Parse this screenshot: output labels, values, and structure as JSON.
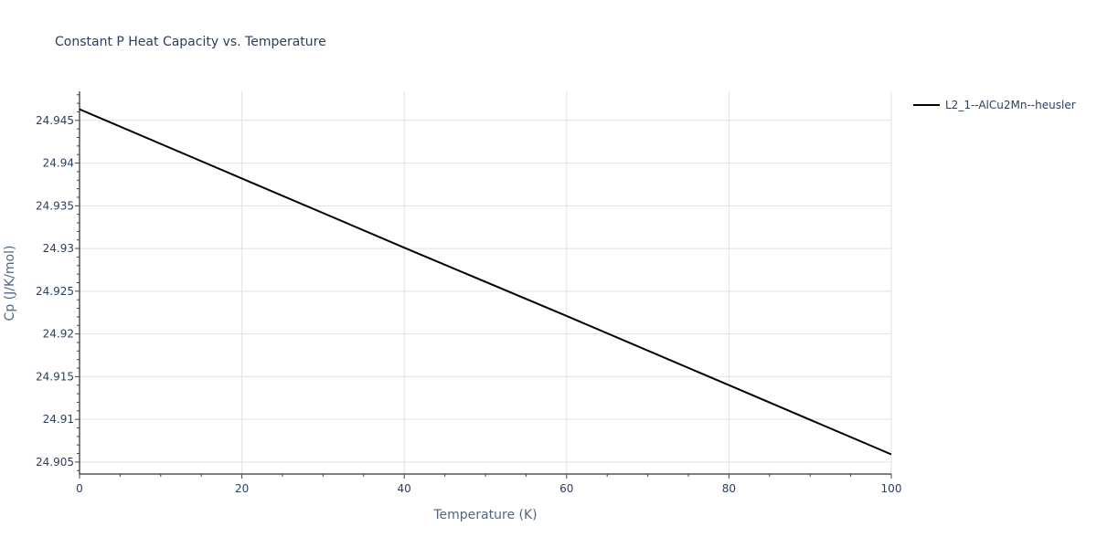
{
  "chart_data": {
    "type": "line",
    "title": "Constant P Heat Capacity vs. Temperature",
    "xlabel": "Temperature (K)",
    "ylabel": "Cp (J/K/mol)",
    "xlim": [
      0,
      100
    ],
    "ylim": [
      24.9036,
      24.9484
    ],
    "x_ticks": [
      0,
      20,
      40,
      60,
      80,
      100
    ],
    "y_ticks": [
      24.905,
      24.91,
      24.915,
      24.92,
      24.925,
      24.93,
      24.935,
      24.94,
      24.945
    ],
    "y_tick_labels": [
      "24.905",
      "24.91",
      "24.915",
      "24.92",
      "24.925",
      "24.93",
      "24.935",
      "24.94",
      "24.945"
    ],
    "grid": true,
    "legend_position": "top-right outside",
    "series": [
      {
        "name": "L2_1--AlCu2Mn--heusler",
        "color": "#000000",
        "x": [
          0,
          20,
          40,
          60,
          80,
          100
        ],
        "values": [
          24.9463,
          24.9382,
          24.9301,
          24.9221,
          24.914,
          24.9059
        ]
      }
    ]
  }
}
